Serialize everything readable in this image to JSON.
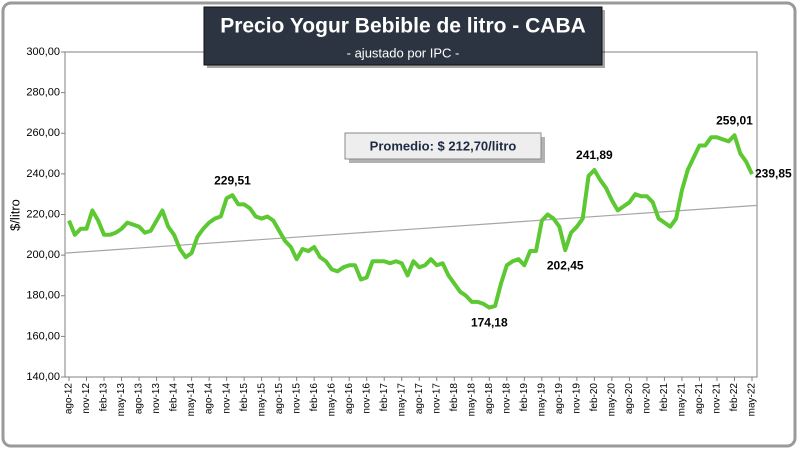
{
  "chart_data": {
    "type": "line",
    "title": "Precio Yogur Bebible de litro - CABA",
    "subtitle": "- ajustado por IPC -",
    "y_label": "$/litro",
    "average_label": "Promedio: $ 212,70/litro",
    "categories": [
      "ago-12",
      null,
      null,
      "nov-12",
      null,
      null,
      "feb-13",
      null,
      null,
      "may-13",
      null,
      null,
      "ago-13",
      null,
      null,
      "nov-13",
      null,
      null,
      "feb-14",
      null,
      null,
      "may-14",
      null,
      null,
      "ago-14",
      null,
      null,
      "nov-14",
      null,
      null,
      "feb-15",
      null,
      null,
      "may-15",
      null,
      null,
      "ago-15",
      null,
      null,
      "nov-15",
      null,
      null,
      "feb-16",
      null,
      null,
      "may-16",
      null,
      null,
      "ago-16",
      null,
      null,
      "nov-16",
      null,
      null,
      "feb-17",
      null,
      null,
      "may-17",
      null,
      null,
      "ago-17",
      null,
      null,
      "nov-17",
      null,
      null,
      "feb-18",
      null,
      null,
      "may-18",
      null,
      null,
      "ago-18",
      null,
      null,
      "nov-18",
      null,
      null,
      "feb-19",
      null,
      null,
      "may-19",
      null,
      null,
      "ago-19",
      null,
      null,
      "nov-19",
      null,
      null,
      "feb-20",
      null,
      null,
      "may-20",
      null,
      null,
      "ago-20",
      null,
      null,
      "nov-20",
      null,
      null,
      "feb-21",
      null,
      null,
      "may-21",
      null,
      null,
      "ago-21",
      null,
      null,
      "nov-21",
      null,
      null,
      "feb-22",
      null,
      null,
      "may-22"
    ],
    "values": [
      217,
      210,
      213,
      213,
      222,
      217,
      210,
      210,
      211,
      213,
      216,
      215,
      214,
      211,
      212,
      217,
      222,
      214,
      210,
      203,
      199,
      201,
      209,
      213,
      216,
      218,
      219,
      228,
      229.51,
      225,
      225,
      223,
      219,
      218,
      219,
      217,
      212,
      207,
      204,
      198,
      203,
      202,
      204,
      199,
      197,
      193,
      192,
      194,
      195,
      195,
      188,
      189,
      197,
      197,
      197,
      196,
      197,
      196,
      190,
      197,
      194,
      195,
      198,
      195,
      196,
      190,
      186,
      182,
      180,
      177,
      177,
      176,
      174.18,
      175,
      186,
      195,
      197,
      198,
      195,
      202,
      202,
      217,
      220,
      218,
      214,
      202.45,
      211,
      214,
      218,
      239,
      241.89,
      237,
      233,
      227,
      222,
      224,
      226,
      230,
      229,
      229,
      226,
      218,
      216,
      214,
      218,
      232,
      242,
      248,
      254,
      254,
      258,
      258,
      257,
      256,
      259.01,
      250,
      246,
      239.85
    ],
    "value_labels": [
      null,
      null,
      null,
      null,
      null,
      null,
      null,
      null,
      null,
      null,
      null,
      null,
      null,
      null,
      null,
      null,
      null,
      null,
      null,
      null,
      null,
      null,
      null,
      null,
      null,
      null,
      null,
      null,
      "229,51",
      null,
      null,
      null,
      null,
      null,
      null,
      null,
      null,
      null,
      null,
      null,
      null,
      null,
      null,
      null,
      null,
      null,
      null,
      null,
      null,
      null,
      null,
      null,
      null,
      null,
      null,
      null,
      null,
      null,
      null,
      null,
      null,
      null,
      null,
      null,
      null,
      null,
      null,
      null,
      null,
      null,
      null,
      null,
      "174,18",
      null,
      null,
      null,
      null,
      null,
      null,
      null,
      null,
      null,
      null,
      null,
      null,
      "202,45",
      null,
      null,
      null,
      null,
      "241,89",
      null,
      null,
      null,
      null,
      null,
      null,
      null,
      null,
      null,
      null,
      null,
      null,
      null,
      null,
      null,
      null,
      null,
      null,
      null,
      null,
      null,
      null,
      null,
      "259,01",
      null,
      null,
      "239,85"
    ],
    "color": "#5cc832",
    "trend_line": {
      "start": 201,
      "end": 224.5,
      "color": "#a6a6a6"
    },
    "ylim": [
      140,
      300
    ],
    "yticks": [
      {
        "value": 140,
        "label": "140,00"
      },
      {
        "value": 160,
        "label": "160,00"
      },
      {
        "value": 180,
        "label": "180,00"
      },
      {
        "value": 200,
        "label": "200,00"
      },
      {
        "value": 220,
        "label": "220,00"
      },
      {
        "value": 240,
        "label": "240,00"
      },
      {
        "value": 260,
        "label": "260,00"
      },
      {
        "value": 280,
        "label": "280,00"
      },
      {
        "value": 300,
        "label": "300,00"
      }
    ],
    "grid": false
  }
}
